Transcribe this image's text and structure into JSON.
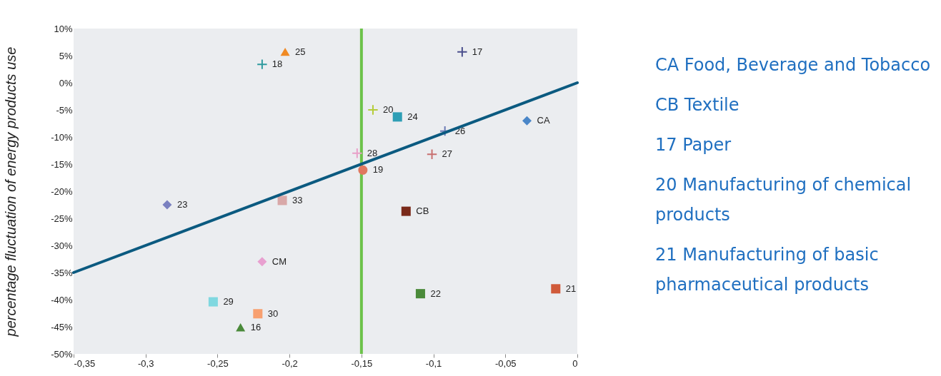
{
  "chart_data": {
    "type": "scatter",
    "ylabel": "percentage fluctuation of  energy products use",
    "xlim": [
      -0.35,
      0
    ],
    "ylim": [
      -50,
      10
    ],
    "xticks": [
      {
        "value": -0.35,
        "label": "-0,35"
      },
      {
        "value": -0.3,
        "label": "-0,3"
      },
      {
        "value": -0.25,
        "label": "-0,25"
      },
      {
        "value": -0.2,
        "label": "-0,2"
      },
      {
        "value": -0.15,
        "label": "-0,15"
      },
      {
        "value": -0.1,
        "label": "-0,1"
      },
      {
        "value": -0.05,
        "label": "-0,05"
      },
      0
    ],
    "yticks": [
      {
        "value": -50,
        "label": "-50%"
      },
      {
        "value": -45,
        "label": "-45%"
      },
      {
        "value": -40,
        "label": "-40%"
      },
      {
        "value": -35,
        "label": "-35%"
      },
      {
        "value": -30,
        "label": "-30%"
      },
      {
        "value": -25,
        "label": "-25%"
      },
      {
        "value": -20,
        "label": "-20%"
      },
      {
        "value": -15,
        "label": "-15%"
      },
      {
        "value": -10,
        "label": "-10%"
      },
      {
        "value": -5,
        "label": "-5%"
      },
      {
        "value": 0,
        "label": "0%"
      },
      {
        "value": 5,
        "label": "5%"
      },
      {
        "value": 10,
        "label": "10%"
      }
    ],
    "grid": false,
    "series": [
      {
        "name": "18",
        "color": "#2e9a9e",
        "marker": "cross",
        "x": [
          -0.219
        ],
        "values": [
          3.4
        ]
      },
      {
        "name": "25",
        "color": "#f08a24",
        "marker": "triangle",
        "x": [
          -0.203
        ],
        "values": [
          5.7
        ]
      },
      {
        "name": "17",
        "color": "#4a4e8c",
        "marker": "cross",
        "x": [
          -0.08
        ],
        "values": [
          5.7
        ]
      },
      {
        "name": "20",
        "color": "#b5cc3a",
        "marker": "cross",
        "x": [
          -0.142
        ],
        "values": [
          -5.0
        ]
      },
      {
        "name": "24",
        "color": "#2e9eb5",
        "marker": "square",
        "x": [
          -0.125
        ],
        "values": [
          -6.3
        ]
      },
      {
        "name": "26",
        "color": "#6a7ab5",
        "marker": "cross",
        "x": [
          -0.092
        ],
        "values": [
          -8.9
        ]
      },
      {
        "name": "CA",
        "color": "#4a86c8",
        "marker": "diamond",
        "x": [
          -0.035
        ],
        "values": [
          -7.0
        ]
      },
      {
        "name": "28",
        "color": "#e8a0c8",
        "marker": "cross",
        "x": [
          -0.153
        ],
        "values": [
          -13.0
        ]
      },
      {
        "name": "27",
        "color": "#c87070",
        "marker": "cross",
        "x": [
          -0.101
        ],
        "values": [
          -13.2
        ]
      },
      {
        "name": "19",
        "color": "#e07860",
        "marker": "circle",
        "x": [
          -0.149
        ],
        "values": [
          -16.1
        ]
      },
      {
        "name": "23",
        "color": "#7a80c0",
        "marker": "diamond",
        "x": [
          -0.285
        ],
        "values": [
          -22.5
        ]
      },
      {
        "name": "33",
        "color": "#d8a8a8",
        "marker": "square",
        "x": [
          -0.205
        ],
        "values": [
          -21.7
        ]
      },
      {
        "name": "CM",
        "color": "#e8a0d0",
        "marker": "diamond",
        "x": [
          -0.219
        ],
        "values": [
          -33.0
        ]
      },
      {
        "name": "CB",
        "color": "#7a2a1a",
        "marker": "square",
        "x": [
          -0.119
        ],
        "values": [
          -23.7
        ]
      },
      {
        "name": "29",
        "color": "#80d8e0",
        "marker": "square",
        "x": [
          -0.253
        ],
        "values": [
          -40.4
        ]
      },
      {
        "name": "30",
        "color": "#f8a070",
        "marker": "square",
        "x": [
          -0.222
        ],
        "values": [
          -42.6
        ]
      },
      {
        "name": "16",
        "color": "#4a8a3a",
        "marker": "triangle",
        "x": [
          -0.234
        ],
        "values": [
          -45.1
        ]
      },
      {
        "name": "22",
        "color": "#4a8a3a",
        "marker": "square",
        "x": [
          -0.109
        ],
        "values": [
          -38.9
        ]
      },
      {
        "name": "21",
        "color": "#d05a3a",
        "marker": "square",
        "x": [
          -0.015
        ],
        "values": [
          -38.0
        ]
      },
      {
        "type": "line",
        "color": "#0b5a80",
        "x": [
          -0.35,
          0
        ],
        "values": [
          -35,
          0
        ]
      }
    ],
    "ref_lines": [
      {
        "axis": "x",
        "value": -0.15,
        "color": "#6cc24a"
      }
    ],
    "annotations": [
      "CA Food, Beverage and Tobacco",
      "CB Textile",
      "17 Paper",
      "20 Manufacturing of chemical products",
      "21 Manufacturing of  basic pharmaceutical products"
    ]
  }
}
